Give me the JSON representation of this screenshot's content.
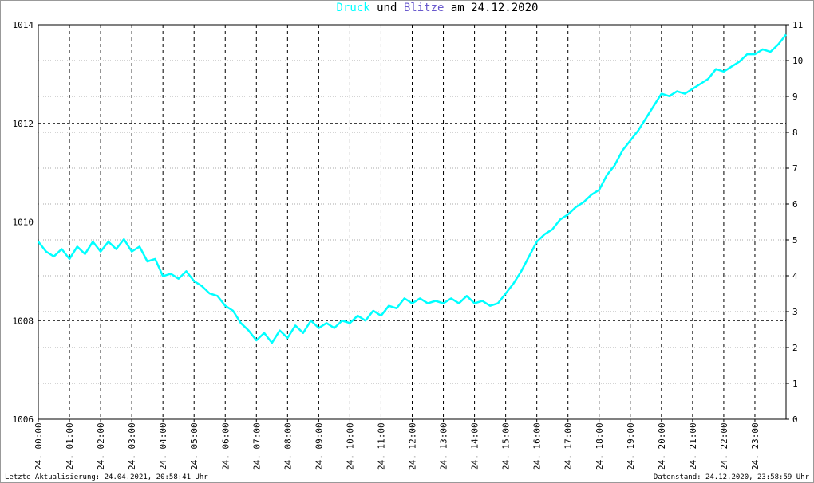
{
  "chart_data": {
    "type": "line",
    "title_joiner": "und",
    "title_suffix": "am 24.12.2020",
    "footer_left": "Letzte Aktualisierung: 24.04.2021, 20:58:41 Uhr",
    "footer_right": "Datenstand: 24.12.2020, 23:58:59 Uhr",
    "xlim": [
      0,
      24
    ],
    "xticks": [
      {
        "value": 0,
        "label": "24. 00:00"
      },
      {
        "value": 1,
        "label": "24. 01:00"
      },
      {
        "value": 2,
        "label": "24. 02:00"
      },
      {
        "value": 3,
        "label": "24. 03:00"
      },
      {
        "value": 4,
        "label": "24. 04:00"
      },
      {
        "value": 5,
        "label": "24. 05:00"
      },
      {
        "value": 6,
        "label": "24. 06:00"
      },
      {
        "value": 7,
        "label": "24. 07:00"
      },
      {
        "value": 8,
        "label": "24. 08:00"
      },
      {
        "value": 9,
        "label": "24. 09:00"
      },
      {
        "value": 10,
        "label": "24. 10:00"
      },
      {
        "value": 11,
        "label": "24. 11:00"
      },
      {
        "value": 12,
        "label": "24. 12:00"
      },
      {
        "value": 13,
        "label": "24. 13:00"
      },
      {
        "value": 14,
        "label": "24. 14:00"
      },
      {
        "value": 15,
        "label": "24. 15:00"
      },
      {
        "value": 16,
        "label": "24. 16:00"
      },
      {
        "value": 17,
        "label": "24. 17:00"
      },
      {
        "value": 18,
        "label": "24. 18:00"
      },
      {
        "value": 19,
        "label": "24. 19:00"
      },
      {
        "value": 20,
        "label": "24. 20:00"
      },
      {
        "value": 21,
        "label": "24. 21:00"
      },
      {
        "value": 22,
        "label": "24. 22:00"
      },
      {
        "value": 23,
        "label": "24. 23:00"
      }
    ],
    "ylim": [
      1006,
      1014
    ],
    "yticks": [
      1006,
      1008,
      1010,
      1012,
      1014
    ],
    "y2lim": [
      0,
      11
    ],
    "y2ticks": [
      0,
      1,
      2,
      3,
      4,
      5,
      6,
      7,
      8,
      9,
      10,
      11
    ],
    "grid": true,
    "x": [
      0,
      0.25,
      0.5,
      0.75,
      1,
      1.25,
      1.5,
      1.75,
      2,
      2.25,
      2.5,
      2.75,
      3,
      3.25,
      3.5,
      3.75,
      4,
      4.25,
      4.5,
      4.75,
      5,
      5.25,
      5.5,
      5.75,
      6,
      6.25,
      6.5,
      6.75,
      7,
      7.25,
      7.5,
      7.75,
      8,
      8.25,
      8.5,
      8.75,
      9,
      9.25,
      9.5,
      9.75,
      10,
      10.25,
      10.5,
      10.75,
      11,
      11.25,
      11.5,
      11.75,
      12,
      12.25,
      12.5,
      12.75,
      13,
      13.25,
      13.5,
      13.75,
      14,
      14.25,
      14.5,
      14.75,
      15,
      15.25,
      15.5,
      15.75,
      16,
      16.25,
      16.5,
      16.75,
      17,
      17.25,
      17.5,
      17.75,
      18,
      18.25,
      18.5,
      18.75,
      19,
      19.25,
      19.5,
      19.75,
      20,
      20.25,
      20.5,
      20.75,
      21,
      21.25,
      21.5,
      21.75,
      22,
      22.25,
      22.5,
      22.75,
      23,
      23.25,
      23.5,
      23.75,
      24
    ],
    "series": [
      {
        "name": "Druck",
        "color": "#00ffff",
        "values": [
          1009.6,
          1009.4,
          1009.3,
          1009.45,
          1009.25,
          1009.5,
          1009.35,
          1009.6,
          1009.4,
          1009.6,
          1009.45,
          1009.65,
          1009.4,
          1009.5,
          1009.2,
          1009.25,
          1008.9,
          1008.95,
          1008.85,
          1009.0,
          1008.8,
          1008.7,
          1008.55,
          1008.5,
          1008.3,
          1008.2,
          1007.95,
          1007.8,
          1007.6,
          1007.75,
          1007.55,
          1007.8,
          1007.65,
          1007.9,
          1007.75,
          1008.0,
          1007.85,
          1007.95,
          1007.85,
          1008.0,
          1007.95,
          1008.1,
          1008.0,
          1008.2,
          1008.1,
          1008.3,
          1008.25,
          1008.45,
          1008.35,
          1008.45,
          1008.35,
          1008.4,
          1008.35,
          1008.45,
          1008.35,
          1008.5,
          1008.35,
          1008.4,
          1008.3,
          1008.35,
          1008.55,
          1008.75,
          1009.0,
          1009.3,
          1009.6,
          1009.75,
          1009.85,
          1010.05,
          1010.15,
          1010.3,
          1010.4,
          1010.55,
          1010.65,
          1010.95,
          1011.15,
          1011.45,
          1011.65,
          1011.85,
          1012.1,
          1012.35,
          1012.6,
          1012.55,
          1012.65,
          1012.6,
          1012.7,
          1012.8,
          1012.9,
          1013.1,
          1013.05,
          1013.15,
          1013.25,
          1013.4,
          1013.4,
          1013.5,
          1013.45,
          1013.6,
          1013.8
        ]
      },
      {
        "name": "Blitze",
        "color": "#6a5acd",
        "axis": "y2"
      }
    ]
  }
}
